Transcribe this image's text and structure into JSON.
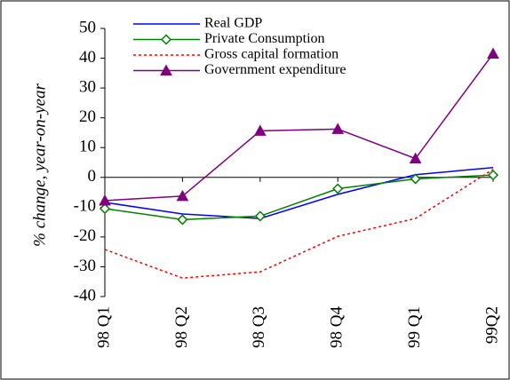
{
  "chart_data": {
    "type": "line",
    "y_label": "% change, year-on-year",
    "categories": [
      "98 Q1",
      "98 Q2",
      "98 Q3",
      "98 Q4",
      "99 Q1",
      "99Q2"
    ],
    "series": [
      {
        "name": "Real GDP",
        "color": "#0000ff",
        "marker": null,
        "dash": false,
        "values": [
          -8.4,
          -12.3,
          -13.8,
          -5.7,
          0.9,
          3.3
        ]
      },
      {
        "name": "Private Consumption",
        "color": "#008000",
        "marker": "diamond",
        "dash": false,
        "values": [
          -10.5,
          -14.2,
          -13,
          -3.8,
          -0.5,
          0.8
        ]
      },
      {
        "name": "Gross capital formation",
        "color": "#ff0000",
        "marker": null,
        "dash": true,
        "values": [
          -24.2,
          -33.8,
          -31.7,
          -19.8,
          -13.8,
          2.7
        ]
      },
      {
        "name": "Government expenditure",
        "color": "#800080",
        "marker": "triangle",
        "dash": false,
        "values": [
          -7.8,
          -6.3,
          15.6,
          16.2,
          6.3,
          41.5
        ]
      }
    ],
    "ylim": [
      -40,
      50
    ],
    "yticks": [
      -40,
      -30,
      -20,
      -10,
      0,
      10,
      20,
      30,
      40,
      50
    ]
  }
}
